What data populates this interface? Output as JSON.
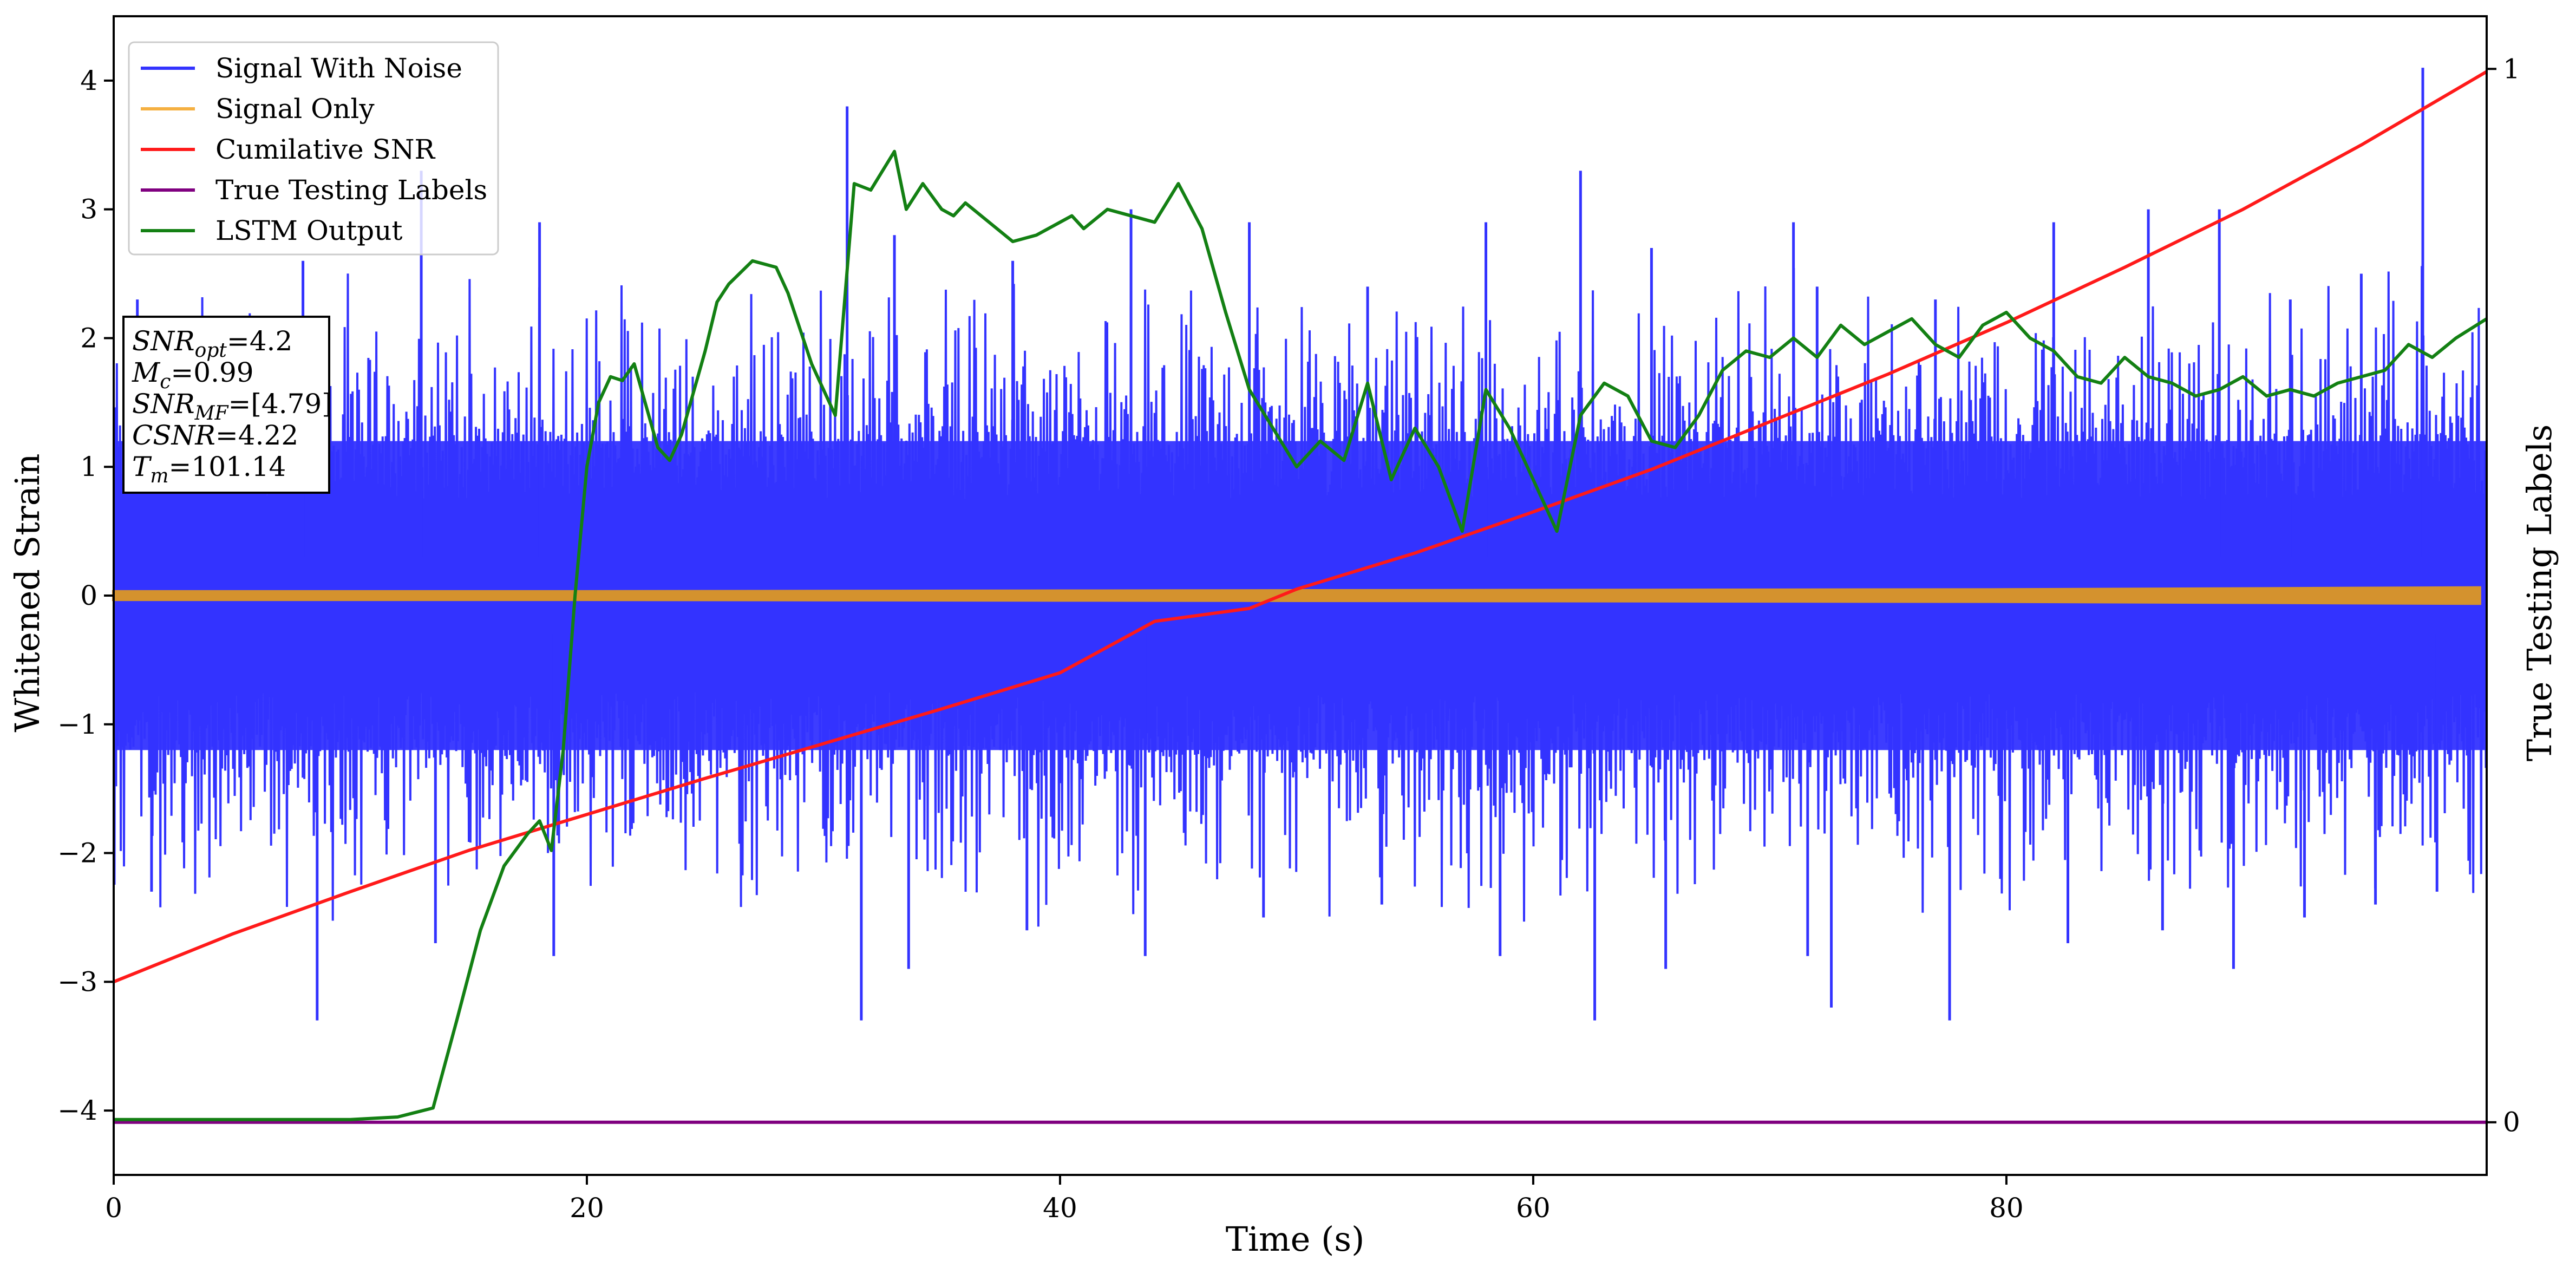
{
  "chart_data": {
    "type": "line",
    "xlabel": "Time (s)",
    "ylabel": "Whitened Strain",
    "ylabel_right": "True Testing Labels",
    "xlim": [
      0,
      100.3
    ],
    "ylim": [
      -4.5,
      4.5
    ],
    "ylim_right": [
      -0.05,
      1.05
    ],
    "xticks": [
      0,
      20,
      40,
      60,
      80
    ],
    "xtick_labels": [
      "0",
      "20",
      "40",
      "60",
      "80"
    ],
    "yticks": [
      -4,
      -3,
      -2,
      -1,
      0,
      1,
      2,
      3,
      4
    ],
    "ytick_labels": [
      "−4",
      "−3",
      "−2",
      "−1",
      "0",
      "1",
      "2",
      "3",
      "4"
    ],
    "yticks_right": [
      0,
      1
    ],
    "ytick_labels_right": [
      "0",
      "1"
    ],
    "grid": false,
    "legend_position": "upper-left",
    "legend": [
      "Signal With Noise",
      "Signal Only",
      "Cumilative SNR",
      "True Testing Labels",
      "LSTM Output"
    ],
    "colors": {
      "Signal With Noise": "#3333ff",
      "Signal Only": "#f5b041",
      "Signal Only Band": "#d4922e",
      "Cumilative SNR": "#ff1a1a",
      "True Testing Labels": "#800080",
      "LSTM Output": "#138013"
    },
    "series": [
      {
        "name": "Signal With Noise",
        "axis": "left",
        "envelope": {
          "dense_upper": 1.2,
          "dense_lower": -1.2,
          "spike_upper": [
            2.3,
            2.6,
            3.3,
            2.9,
            3.8,
            2.8,
            2.6,
            3.0,
            2.9,
            2.4,
            2.9,
            3.3,
            2.7,
            2.9,
            2.4,
            2.3,
            2.9,
            3.0,
            3.0,
            2.3,
            2.5,
            4.1
          ],
          "spike_lower": [
            -2.3,
            -3.3,
            -2.7,
            -2.8,
            -3.3,
            -2.9,
            -2.6,
            -2.8,
            -2.5,
            -2.4,
            -2.8,
            -3.3,
            -2.9,
            -2.8,
            -3.2,
            -3.3,
            -2.7,
            -2.6,
            -2.9,
            -2.5,
            -2.4,
            -2.3
          ],
          "spike_x": [
            1,
            8,
            13,
            18,
            31,
            33,
            38,
            43,
            48,
            53,
            58,
            62,
            65,
            71,
            72,
            77,
            82,
            86,
            89,
            92,
            95,
            97.6
          ]
        }
      },
      {
        "name": "Signal Only",
        "axis": "left",
        "x": [
          0,
          20,
          40,
          60,
          80,
          100
        ],
        "amplitude": [
          0.03,
          0.03,
          0.035,
          0.04,
          0.045,
          0.06
        ]
      },
      {
        "name": "Cumilative SNR",
        "axis": "left",
        "x": [
          0,
          5,
          10,
          15,
          20,
          25,
          30,
          35,
          40,
          44,
          48,
          50,
          55,
          60,
          65,
          70,
          75,
          80,
          85,
          90,
          95,
          100.3
        ],
        "y": [
          -3.0,
          -2.63,
          -2.3,
          -1.98,
          -1.7,
          -1.42,
          -1.15,
          -0.88,
          -0.6,
          -0.2,
          -0.1,
          0.05,
          0.33,
          0.65,
          0.98,
          1.35,
          1.72,
          2.12,
          2.55,
          3.0,
          3.5,
          4.07
        ]
      },
      {
        "name": "True Testing Labels",
        "axis": "right",
        "x": [
          0,
          100.3
        ],
        "y": [
          0,
          0
        ]
      },
      {
        "name": "LSTM Output",
        "axis": "left",
        "x": [
          0,
          10,
          12,
          13.5,
          14.5,
          15.5,
          16.5,
          17.5,
          18,
          18.5,
          19,
          19.5,
          20,
          20.5,
          21,
          21.5,
          22,
          23,
          23.5,
          24,
          25,
          25.5,
          26,
          27,
          28,
          28.5,
          29.5,
          30.5,
          31.3,
          32,
          32.5,
          33,
          33.5,
          34.2,
          35,
          35.5,
          36,
          37,
          38,
          39,
          40,
          40.5,
          41,
          42,
          43,
          44,
          45,
          46,
          47,
          48,
          49,
          50,
          51,
          52,
          53,
          54,
          55,
          56,
          57,
          58,
          59,
          60,
          61,
          62,
          63,
          64,
          65,
          66,
          67,
          68,
          69,
          70,
          71,
          72,
          73,
          74,
          75,
          76,
          77,
          78,
          79,
          80,
          81,
          82,
          83,
          84,
          85,
          86,
          87,
          88,
          89,
          90,
          91,
          92,
          93,
          94,
          95,
          96,
          97,
          98,
          99,
          100.3
        ],
        "y": [
          -4.07,
          -4.07,
          -4.05,
          -3.98,
          -3.3,
          -2.6,
          -2.1,
          -1.85,
          -1.75,
          -1.98,
          -1.2,
          0.0,
          1.0,
          1.5,
          1.7,
          1.67,
          1.8,
          1.15,
          1.05,
          1.25,
          1.9,
          2.28,
          2.42,
          2.6,
          2.55,
          2.35,
          1.8,
          1.4,
          3.2,
          3.15,
          3.3,
          3.45,
          3.0,
          3.2,
          3.0,
          2.95,
          3.05,
          2.9,
          2.75,
          2.8,
          2.9,
          2.95,
          2.85,
          3.0,
          2.95,
          2.9,
          3.2,
          2.85,
          2.2,
          1.6,
          1.3,
          1.0,
          1.2,
          1.05,
          1.65,
          0.9,
          1.3,
          1.0,
          0.5,
          1.6,
          1.3,
          0.9,
          0.5,
          1.4,
          1.65,
          1.55,
          1.2,
          1.15,
          1.4,
          1.75,
          1.9,
          1.85,
          2.0,
          1.85,
          2.1,
          1.95,
          2.05,
          2.15,
          1.95,
          1.85,
          2.1,
          2.2,
          2.0,
          1.9,
          1.7,
          1.65,
          1.85,
          1.7,
          1.65,
          1.55,
          1.6,
          1.7,
          1.55,
          1.6,
          1.55,
          1.65,
          1.7,
          1.75,
          1.95,
          1.85,
          2.0,
          2.15
        ]
      }
    ],
    "annotation": [
      {
        "main": "SNR",
        "sub": "opt",
        "value": "=4.2"
      },
      {
        "main": "M",
        "sub": "c",
        "value": "=0.99"
      },
      {
        "main": "SNR",
        "sub": "MF",
        "value": "=[4.79]"
      },
      {
        "main": "CSNR",
        "sub": "",
        "value": "=4.22"
      },
      {
        "main": "T",
        "sub": "m",
        "value": "=101.14"
      }
    ]
  }
}
